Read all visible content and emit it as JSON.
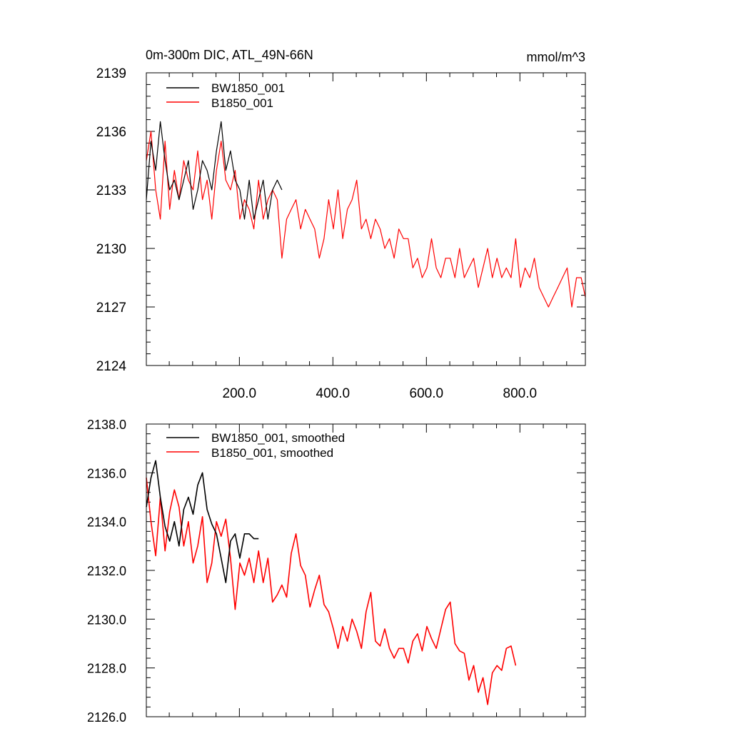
{
  "chart_data": [
    {
      "type": "line",
      "title": "0m-300m DIC, ATL_49N-66N",
      "units": "mmol/m^3",
      "xlabel": "",
      "ylabel": "",
      "xlim": [
        1,
        940
      ],
      "ylim": [
        2124,
        2139
      ],
      "xticks": [
        200,
        400,
        600,
        800
      ],
      "xtick_labels": [
        "200.0",
        "400.0",
        "600.0",
        "800.0"
      ],
      "yticks": [
        2124,
        2127,
        2130,
        2133,
        2136,
        2139
      ],
      "ytick_labels": [
        "2124",
        "2127",
        "2130",
        "2133",
        "2136",
        "2139"
      ],
      "legend": "top-left",
      "series": [
        {
          "name": "BW1850_001",
          "color": "#000000",
          "x_start": 1,
          "x_step": 10,
          "values": [
            2132.5,
            2135.5,
            2134.0,
            2136.5,
            2134.5,
            2133.0,
            2133.5,
            2132.5,
            2133.5,
            2134.5,
            2132.0,
            2133.0,
            2134.5,
            2134.0,
            2133.0,
            2135.0,
            2136.5,
            2134.0,
            2135.0,
            2133.5,
            2133.0,
            2131.5,
            2133.5,
            2131.5,
            2132.5,
            2133.5,
            2131.5,
            2133.0,
            2133.5,
            2133.0
          ]
        },
        {
          "name": "B1850_001",
          "color": "#ff0000",
          "x_start": 1,
          "x_step": 10,
          "values": [
            2134.5,
            2136.0,
            2133.0,
            2131.5,
            2135.5,
            2132.0,
            2134.0,
            2132.5,
            2134.5,
            2133.5,
            2133.0,
            2135.0,
            2132.5,
            2133.5,
            2131.5,
            2134.0,
            2135.5,
            2133.5,
            2133.0,
            2134.0,
            2131.5,
            2132.5,
            2132.0,
            2131.0,
            2133.5,
            2131.5,
            2132.5,
            2133.0,
            2132.5,
            2129.5,
            2131.5,
            2132.0,
            2132.5,
            2131.0,
            2132.0,
            2131.5,
            2131.0,
            2129.5,
            2130.5,
            2132.5,
            2131.0,
            2133.0,
            2130.5,
            2132.0,
            2132.5,
            2133.5,
            2131.0,
            2131.5,
            2130.5,
            2131.5,
            2131.0,
            2130.0,
            2130.5,
            2129.5,
            2131.0,
            2130.5,
            2130.5,
            2129.0,
            2129.5,
            2128.5,
            2129.0,
            2130.5,
            2129.0,
            2128.5,
            2129.5,
            2129.5,
            2128.5,
            2130.0,
            2128.5,
            2129.0,
            2129.5,
            2128.0,
            2129.0,
            2130.0,
            2128.5,
            2129.5,
            2128.5,
            2129.0,
            2128.5,
            2130.5,
            2128.0,
            2129.0,
            2128.5,
            2129.5,
            2128.0,
            2127.5,
            2127.0,
            2127.5,
            2128.0,
            2128.5,
            2129.0,
            2127.0,
            2128.5,
            2128.5,
            2127.5
          ]
        }
      ]
    },
    {
      "type": "line",
      "title": "",
      "xlabel": "",
      "ylabel": "",
      "xlim": [
        1,
        940
      ],
      "ylim": [
        2126,
        2138
      ],
      "xticks": [
        200,
        400,
        600,
        800
      ],
      "xtick_labels": [],
      "yticks": [
        2126,
        2128,
        2130,
        2132,
        2134,
        2136,
        2138
      ],
      "ytick_labels": [
        "2126.0",
        "2128.0",
        "2130.0",
        "2132.0",
        "2134.0",
        "2136.0",
        "2138.0"
      ],
      "legend": "top-left",
      "series": [
        {
          "name": "BW1850_001, smoothed",
          "color": "#000000",
          "x_start": 1,
          "x_step": 10,
          "values": [
            2134.6,
            2135.8,
            2136.5,
            2135.0,
            2133.8,
            2133.2,
            2134.0,
            2133.0,
            2134.5,
            2135.0,
            2134.3,
            2135.5,
            2136.0,
            2134.5,
            2133.9,
            2133.5,
            2132.5,
            2131.5,
            2133.2,
            2133.5,
            2132.5,
            2133.5,
            2133.5,
            2133.3,
            2133.3
          ]
        },
        {
          "name": "B1850_001, smoothed",
          "color": "#ff0000",
          "x_start": 1,
          "x_step": 10,
          "values": [
            2135.8,
            2134.0,
            2132.6,
            2135.0,
            2132.8,
            2134.4,
            2135.3,
            2134.6,
            2133.0,
            2134.0,
            2132.3,
            2133.0,
            2134.2,
            2131.5,
            2132.3,
            2134.0,
            2133.4,
            2134.1,
            2132.5,
            2130.4,
            2132.3,
            2131.8,
            2132.5,
            2131.5,
            2132.8,
            2131.5,
            2132.5,
            2130.7,
            2131.0,
            2131.4,
            2130.9,
            2132.7,
            2133.5,
            2132.2,
            2131.8,
            2130.5,
            2131.2,
            2131.8,
            2130.6,
            2130.3,
            2129.6,
            2128.8,
            2129.7,
            2129.1,
            2130.0,
            2129.5,
            2128.8,
            2130.3,
            2131.1,
            2129.1,
            2128.9,
            2129.6,
            2128.8,
            2128.4,
            2128.8,
            2128.8,
            2128.2,
            2129.1,
            2129.4,
            2128.7,
            2129.7,
            2129.2,
            2128.8,
            2129.6,
            2130.4,
            2130.7,
            2129.0,
            2128.7,
            2128.6,
            2127.5,
            2128.1,
            2127.0,
            2127.6,
            2126.5,
            2127.8,
            2128.1,
            2127.9,
            2128.8,
            2128.9,
            2128.1
          ]
        }
      ]
    }
  ]
}
